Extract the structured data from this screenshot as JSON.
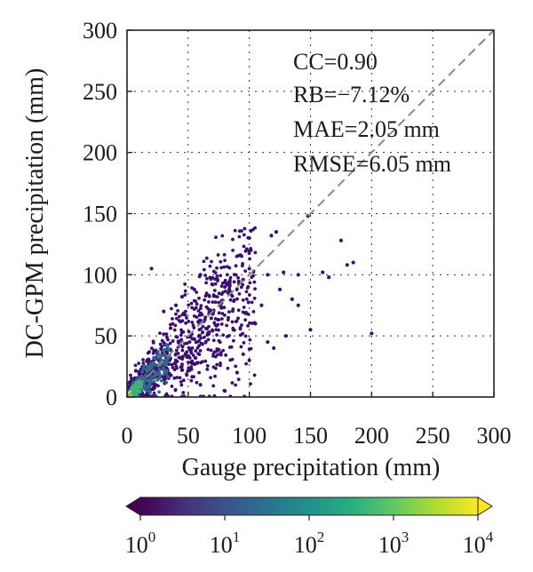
{
  "chart_data": {
    "type": "scatter",
    "subtype": "density-colored scatter",
    "xlabel": "Gauge precipitation (mm)",
    "ylabel": "DC-GPM precipitation (mm)",
    "xlim": [
      0,
      300
    ],
    "ylim": [
      0,
      300
    ],
    "xticks": [
      0,
      50,
      100,
      150,
      200,
      250,
      300
    ],
    "yticks": [
      0,
      50,
      100,
      150,
      200,
      250,
      300
    ],
    "grid": true,
    "reference_line": "1:1",
    "stats": [
      "CC=0.90",
      "RB=−7.12%",
      "MAE=2.05 mm",
      "RMSE=6.05 mm"
    ],
    "colorbar": {
      "colormap": "viridis",
      "scale": "log",
      "tick_labels": [
        {
          "base": "10",
          "exp": "0"
        },
        {
          "base": "10",
          "exp": "1"
        },
        {
          "base": "10",
          "exp": "2"
        },
        {
          "base": "10",
          "exp": "3"
        },
        {
          "base": "10",
          "exp": "4"
        }
      ],
      "extend": "both"
    },
    "outlier_points": [
      [
        20,
        105
      ],
      [
        45,
        82
      ],
      [
        60,
        100
      ],
      [
        80,
        90
      ],
      [
        95,
        96
      ],
      [
        100,
        105
      ],
      [
        115,
        100
      ],
      [
        118,
        132
      ],
      [
        122,
        135
      ],
      [
        128,
        102
      ],
      [
        140,
        100
      ],
      [
        148,
        148
      ],
      [
        160,
        102
      ],
      [
        165,
        98
      ],
      [
        175,
        128
      ],
      [
        180,
        108
      ],
      [
        185,
        110
      ],
      [
        200,
        52
      ],
      [
        100,
        130
      ],
      [
        110,
        75
      ],
      [
        130,
        50
      ],
      [
        150,
        55
      ],
      [
        95,
        35
      ],
      [
        100,
        30
      ],
      [
        60,
        10
      ],
      [
        80,
        5
      ],
      [
        70,
        92
      ],
      [
        55,
        88
      ],
      [
        40,
        75
      ],
      [
        30,
        70
      ],
      [
        140,
        75
      ],
      [
        135,
        80
      ],
      [
        125,
        88
      ],
      [
        105,
        60
      ],
      [
        115,
        45
      ],
      [
        120,
        40
      ],
      [
        90,
        20
      ]
    ]
  },
  "colors": {
    "point_low": "#3b0f70",
    "point_mid": "#31688e",
    "point_high": "#35b779",
    "point_peak": "#fde725",
    "reference_line": "#888888",
    "grid": "#333333"
  }
}
